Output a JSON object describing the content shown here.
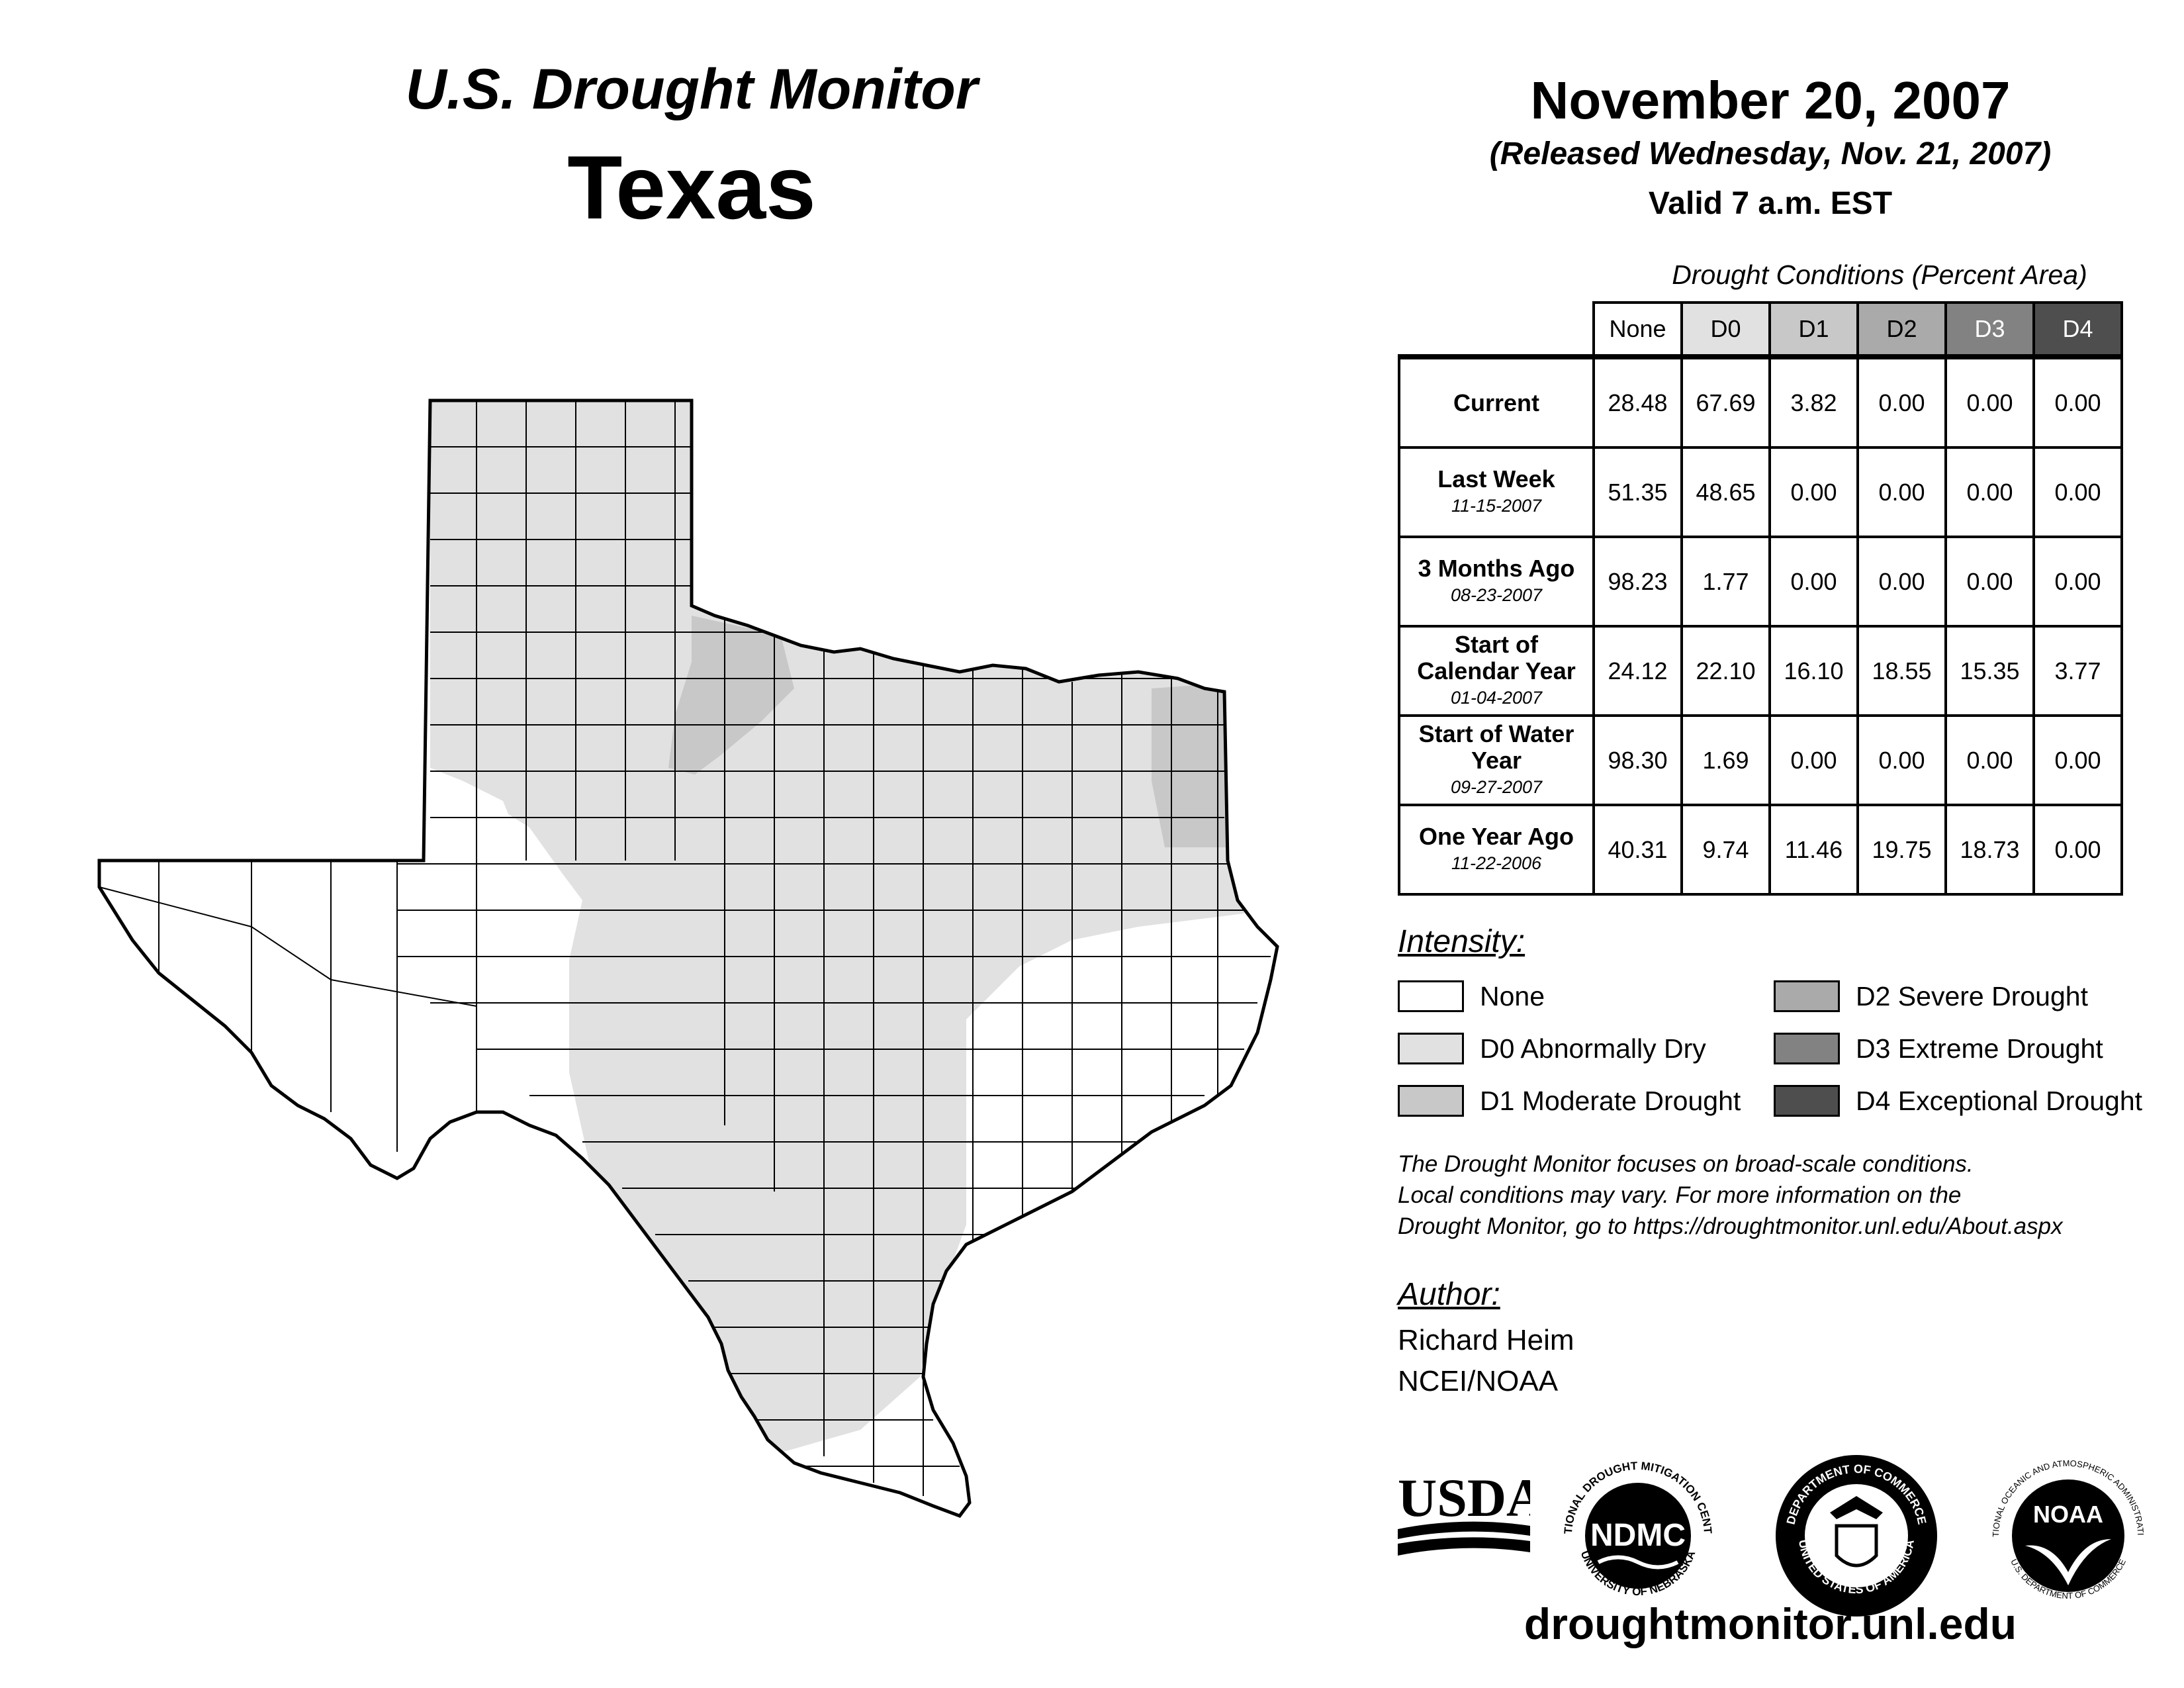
{
  "header": {
    "title": "U.S. Drought Monitor",
    "state": "Texas",
    "date": "November 20, 2007",
    "released": "(Released Wednesday, Nov. 21, 2007)",
    "valid": "Valid 7 a.m. EST"
  },
  "table": {
    "caption": "Drought Conditions (Percent Area)",
    "columns": [
      "None",
      "D0",
      "D1",
      "D2",
      "D3",
      "D4"
    ],
    "rows": [
      {
        "label": "Current",
        "date": "",
        "values": [
          "28.48",
          "67.69",
          "3.82",
          "0.00",
          "0.00",
          "0.00"
        ]
      },
      {
        "label": "Last Week",
        "date": "11-15-2007",
        "values": [
          "51.35",
          "48.65",
          "0.00",
          "0.00",
          "0.00",
          "0.00"
        ]
      },
      {
        "label": "3 Months Ago",
        "date": "08-23-2007",
        "values": [
          "98.23",
          "1.77",
          "0.00",
          "0.00",
          "0.00",
          "0.00"
        ]
      },
      {
        "label": "Start of Calendar Year",
        "date": "01-04-2007",
        "values": [
          "24.12",
          "22.10",
          "16.10",
          "18.55",
          "15.35",
          "3.77"
        ]
      },
      {
        "label": "Start of Water Year",
        "date": "09-27-2007",
        "values": [
          "98.30",
          "1.69",
          "0.00",
          "0.00",
          "0.00",
          "0.00"
        ]
      },
      {
        "label": "One Year Ago",
        "date": "11-22-2006",
        "values": [
          "40.31",
          "9.74",
          "11.46",
          "19.75",
          "18.73",
          "0.00"
        ]
      }
    ]
  },
  "legend": {
    "title": "Intensity:",
    "items": [
      {
        "label": "None",
        "color": "#ffffff"
      },
      {
        "label": "D0 Abnormally Dry",
        "color": "#e1e1e1"
      },
      {
        "label": "D1 Moderate Drought",
        "color": "#c8c8c8"
      },
      {
        "label": "D2 Severe Drought",
        "color": "#aaaaaa"
      },
      {
        "label": "D3 Extreme Drought",
        "color": "#828282"
      },
      {
        "label": "D4 Exceptional Drought",
        "color": "#4e4e4e"
      }
    ]
  },
  "note": {
    "line1": "The Drought Monitor focuses on broad-scale conditions.",
    "line2": "Local conditions may vary. For more information on the",
    "line3": "Drought Monitor, go to https://droughtmonitor.unl.edu/About.aspx"
  },
  "author": {
    "title": "Author:",
    "name": "Richard Heim",
    "org": "NCEI/NOAA"
  },
  "logos": {
    "usda": "USDA",
    "ndmc": "NDMC",
    "ndmc_ring_top": "NATIONAL DROUGHT MITIGATION CENTER",
    "ndmc_ring_bottom": "UNIVERSITY OF NEBRASKA",
    "doc_ring_top": "DEPARTMENT OF COMMERCE",
    "doc_ring_bottom": "UNITED STATES OF AMERICA",
    "noaa": "NOAA",
    "noaa_ring_top": "NATIONAL OCEANIC AND ATMOSPHERIC ADMINISTRATION",
    "noaa_ring_bottom": "U.S. DEPARTMENT OF COMMERCE"
  },
  "footer": {
    "url": "droughtmonitor.unl.edu"
  },
  "colors": {
    "none": "#ffffff",
    "d0": "#e1e1e1",
    "d1": "#c8c8c8",
    "d2": "#aaaaaa",
    "d3": "#828282",
    "d4": "#4e4e4e"
  }
}
